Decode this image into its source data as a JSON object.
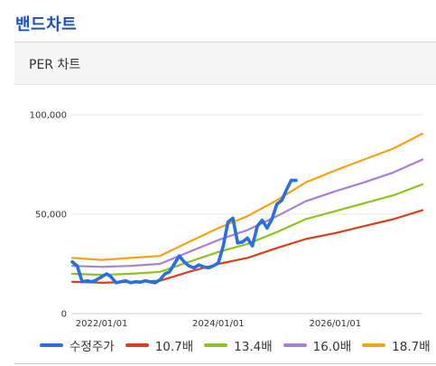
{
  "page_title": "밴드차트",
  "panel_title": "PER 차트",
  "chart_data": {
    "type": "line",
    "title": "",
    "xlabel": "",
    "ylabel": "",
    "ylim": [
      0,
      100000
    ],
    "xlim": [
      "2021/07/01",
      "2027/07/01"
    ],
    "grid": true,
    "legend_placement": "bottom",
    "yticks": [
      0,
      50000,
      100000
    ],
    "ytick_labels": [
      "0",
      "50,000",
      "100,000"
    ],
    "xticks": [
      "2022/01/01",
      "2024/01/01",
      "2026/01/01"
    ],
    "xtick_labels": [
      "2022/01/01",
      "2024/01/01",
      "2026/01/01"
    ],
    "series": [
      {
        "name": "수정주가",
        "color": "#2a6fe0",
        "points": [
          [
            "2021/07/01",
            26000
          ],
          [
            "2021/08/01",
            24000
          ],
          [
            "2021/09/01",
            16000
          ],
          [
            "2021/10/01",
            16500
          ],
          [
            "2021/11/01",
            16000
          ],
          [
            "2021/12/01",
            17000
          ],
          [
            "2022/01/01",
            18500
          ],
          [
            "2022/02/01",
            20000
          ],
          [
            "2022/03/01",
            18500
          ],
          [
            "2022/04/01",
            15500
          ],
          [
            "2022/05/01",
            16000
          ],
          [
            "2022/06/01",
            16500
          ],
          [
            "2022/07/01",
            15500
          ],
          [
            "2022/08/01",
            16000
          ],
          [
            "2022/09/01",
            15800
          ],
          [
            "2022/10/01",
            16500
          ],
          [
            "2022/11/01",
            16000
          ],
          [
            "2022/12/01",
            15500
          ],
          [
            "2023/01/01",
            17000
          ],
          [
            "2023/02/01",
            20000
          ],
          [
            "2023/03/01",
            21000
          ],
          [
            "2023/04/01",
            25000
          ],
          [
            "2023/05/01",
            29000
          ],
          [
            "2023/06/01",
            26000
          ],
          [
            "2023/07/01",
            24000
          ],
          [
            "2023/08/01",
            23000
          ],
          [
            "2023/09/01",
            24500
          ],
          [
            "2023/10/01",
            23500
          ],
          [
            "2023/11/01",
            23000
          ],
          [
            "2023/12/01",
            24000
          ],
          [
            "2024/01/01",
            25500
          ],
          [
            "2024/02/01",
            34000
          ],
          [
            "2024/03/01",
            46000
          ],
          [
            "2024/04/01",
            48000
          ],
          [
            "2024/05/01",
            35500
          ],
          [
            "2024/06/01",
            36000
          ],
          [
            "2024/07/01",
            38000
          ],
          [
            "2024/08/01",
            34000
          ],
          [
            "2024/09/01",
            44000
          ],
          [
            "2024/10/01",
            47000
          ],
          [
            "2024/11/01",
            43000
          ],
          [
            "2024/12/01",
            47500
          ],
          [
            "2025/01/01",
            55000
          ],
          [
            "2025/02/01",
            57000
          ],
          [
            "2025/03/01",
            62000
          ],
          [
            "2025/04/01",
            67000
          ],
          [
            "2025/05/01",
            67000
          ]
        ]
      },
      {
        "name": "10.7배",
        "color": "#d6401a",
        "points": [
          [
            "2021/07/01",
            16000
          ],
          [
            "2022/01/01",
            15500
          ],
          [
            "2022/07/01",
            16000
          ],
          [
            "2023/01/01",
            16500
          ],
          [
            "2023/07/01",
            21000
          ],
          [
            "2024/01/01",
            25000
          ],
          [
            "2024/07/01",
            28000
          ],
          [
            "2025/01/01",
            33000
          ],
          [
            "2025/07/01",
            37500
          ],
          [
            "2026/01/01",
            40500
          ],
          [
            "2026/07/01",
            44000
          ],
          [
            "2027/01/01",
            47500
          ],
          [
            "2027/07/01",
            52000
          ]
        ]
      },
      {
        "name": "13.4배",
        "color": "#8dc21f",
        "points": [
          [
            "2021/07/01",
            20000
          ],
          [
            "2022/01/01",
            19500
          ],
          [
            "2022/07/01",
            20000
          ],
          [
            "2023/01/01",
            21000
          ],
          [
            "2023/07/01",
            26000
          ],
          [
            "2024/01/01",
            31000
          ],
          [
            "2024/07/01",
            35000
          ],
          [
            "2025/01/01",
            41000
          ],
          [
            "2025/07/01",
            47500
          ],
          [
            "2026/01/01",
            51500
          ],
          [
            "2026/07/01",
            55500
          ],
          [
            "2027/01/01",
            59500
          ],
          [
            "2027/07/01",
            65000
          ]
        ]
      },
      {
        "name": "16.0배",
        "color": "#a77fd8",
        "points": [
          [
            "2021/07/01",
            24000
          ],
          [
            "2022/01/01",
            23500
          ],
          [
            "2022/07/01",
            24000
          ],
          [
            "2023/01/01",
            25000
          ],
          [
            "2023/07/01",
            31000
          ],
          [
            "2024/01/01",
            37000
          ],
          [
            "2024/07/01",
            42000
          ],
          [
            "2025/01/01",
            49000
          ],
          [
            "2025/07/01",
            56500
          ],
          [
            "2026/01/01",
            61500
          ],
          [
            "2026/07/01",
            66000
          ],
          [
            "2027/01/01",
            71000
          ],
          [
            "2027/07/01",
            77500
          ]
        ]
      },
      {
        "name": "18.7배",
        "color": "#f5a312",
        "points": [
          [
            "2021/07/01",
            28000
          ],
          [
            "2022/01/01",
            27000
          ],
          [
            "2022/07/01",
            28000
          ],
          [
            "2023/01/01",
            29000
          ],
          [
            "2023/07/01",
            36000
          ],
          [
            "2024/01/01",
            43000
          ],
          [
            "2024/07/01",
            49000
          ],
          [
            "2025/01/01",
            57000
          ],
          [
            "2025/07/01",
            66000
          ],
          [
            "2026/01/01",
            72000
          ],
          [
            "2026/07/01",
            77500
          ],
          [
            "2027/01/01",
            83000
          ],
          [
            "2027/07/01",
            90500
          ]
        ]
      }
    ]
  }
}
